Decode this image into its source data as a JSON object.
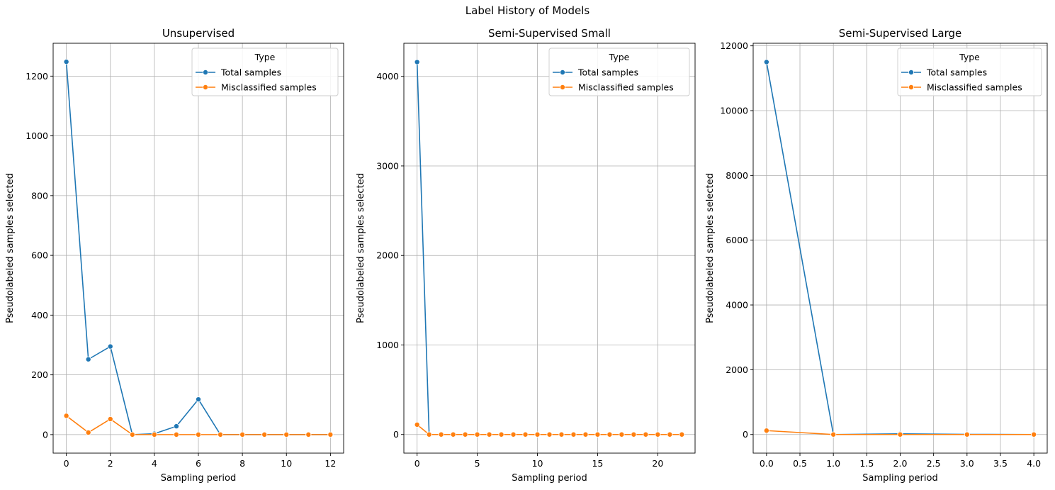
{
  "figure": {
    "title": "Label History of Models"
  },
  "colors": {
    "total": "#1f77b4",
    "misclassified": "#ff7f0e",
    "grid": "#b0b0b0",
    "axis": "#000000"
  },
  "chart_data": [
    {
      "type": "line",
      "title": "Unsupervised",
      "xlabel": "Sampling period",
      "ylabel": "Pseudolabeled samples selected",
      "xlim": [
        -0.6,
        12.6
      ],
      "ylim": [
        -62,
        1310
      ],
      "xticks": [
        0,
        2,
        4,
        6,
        8,
        10,
        12
      ],
      "xtick_labels": [
        "0",
        "2",
        "4",
        "6",
        "8",
        "10",
        "12"
      ],
      "yticks": [
        0,
        200,
        400,
        600,
        800,
        1000,
        1200
      ],
      "ytick_labels": [
        "0",
        "200",
        "400",
        "600",
        "800",
        "1000",
        "1200"
      ],
      "grid": true,
      "legend": {
        "title": "Type",
        "position": "upper right"
      },
      "series": [
        {
          "name": "Total samples",
          "color": "#1f77b4",
          "x": [
            0,
            1,
            2,
            3,
            4,
            5,
            6,
            7,
            8,
            9,
            10,
            11,
            12
          ],
          "y": [
            1248,
            252,
            295,
            0,
            3,
            28,
            118,
            0,
            0,
            0,
            0,
            0,
            0
          ]
        },
        {
          "name": "Misclassified samples",
          "color": "#ff7f0e",
          "x": [
            0,
            1,
            2,
            3,
            4,
            5,
            6,
            7,
            8,
            9,
            10,
            11,
            12
          ],
          "y": [
            63,
            7,
            52,
            0,
            0,
            0,
            0,
            0,
            0,
            0,
            0,
            0,
            0
          ]
        }
      ]
    },
    {
      "type": "line",
      "title": "Semi-Supervised Small",
      "xlabel": "Sampling period",
      "ylabel": "Pseudolabeled samples selected",
      "xlim": [
        -1.1,
        23.1
      ],
      "ylim": [
        -208,
        4370
      ],
      "xticks": [
        0,
        5,
        10,
        15,
        20
      ],
      "xtick_labels": [
        "0",
        "5",
        "10",
        "15",
        "20"
      ],
      "yticks": [
        0,
        1000,
        2000,
        3000,
        4000
      ],
      "ytick_labels": [
        "0",
        "1000",
        "2000",
        "3000",
        "4000"
      ],
      "grid": true,
      "legend": {
        "title": "Type",
        "position": "upper right"
      },
      "series": [
        {
          "name": "Total samples",
          "color": "#1f77b4",
          "x": [
            0,
            1,
            2,
            3,
            4,
            5,
            6,
            7,
            8,
            9,
            10,
            11,
            12,
            13,
            14,
            15,
            16,
            17,
            18,
            19,
            20,
            21,
            22
          ],
          "y": [
            4160,
            0,
            0,
            0,
            0,
            0,
            0,
            0,
            0,
            0,
            0,
            0,
            0,
            0,
            0,
            0,
            0,
            0,
            0,
            0,
            0,
            0,
            0
          ]
        },
        {
          "name": "Misclassified samples",
          "color": "#ff7f0e",
          "x": [
            0,
            1,
            2,
            3,
            4,
            5,
            6,
            7,
            8,
            9,
            10,
            11,
            12,
            13,
            14,
            15,
            16,
            17,
            18,
            19,
            20,
            21,
            22
          ],
          "y": [
            110,
            0,
            0,
            0,
            0,
            0,
            0,
            0,
            0,
            0,
            0,
            0,
            0,
            0,
            0,
            0,
            0,
            0,
            0,
            0,
            0,
            0,
            0
          ]
        }
      ]
    },
    {
      "type": "line",
      "title": "Semi-Supervised Large",
      "xlabel": "Sampling period",
      "ylabel": "Pseudolabeled samples selected",
      "xlim": [
        -0.2,
        4.2
      ],
      "ylim": [
        -575,
        12080
      ],
      "xticks": [
        0,
        0.5,
        1,
        1.5,
        2,
        2.5,
        3,
        3.5,
        4
      ],
      "xtick_labels": [
        "0.0",
        "0.5",
        "1.0",
        "1.5",
        "2.0",
        "2.5",
        "3.0",
        "3.5",
        "4.0"
      ],
      "yticks": [
        0,
        2000,
        4000,
        6000,
        8000,
        10000,
        12000
      ],
      "ytick_labels": [
        "0",
        "2000",
        "4000",
        "6000",
        "8000",
        "10000",
        "12000"
      ],
      "grid": true,
      "legend": {
        "title": "Type",
        "position": "upper right"
      },
      "series": [
        {
          "name": "Total samples",
          "color": "#1f77b4",
          "x": [
            0,
            1,
            2,
            3,
            4
          ],
          "y": [
            11500,
            0,
            20,
            5,
            0
          ]
        },
        {
          "name": "Misclassified samples",
          "color": "#ff7f0e",
          "x": [
            0,
            1,
            2,
            3,
            4
          ],
          "y": [
            120,
            0,
            0,
            0,
            0
          ]
        }
      ]
    }
  ]
}
